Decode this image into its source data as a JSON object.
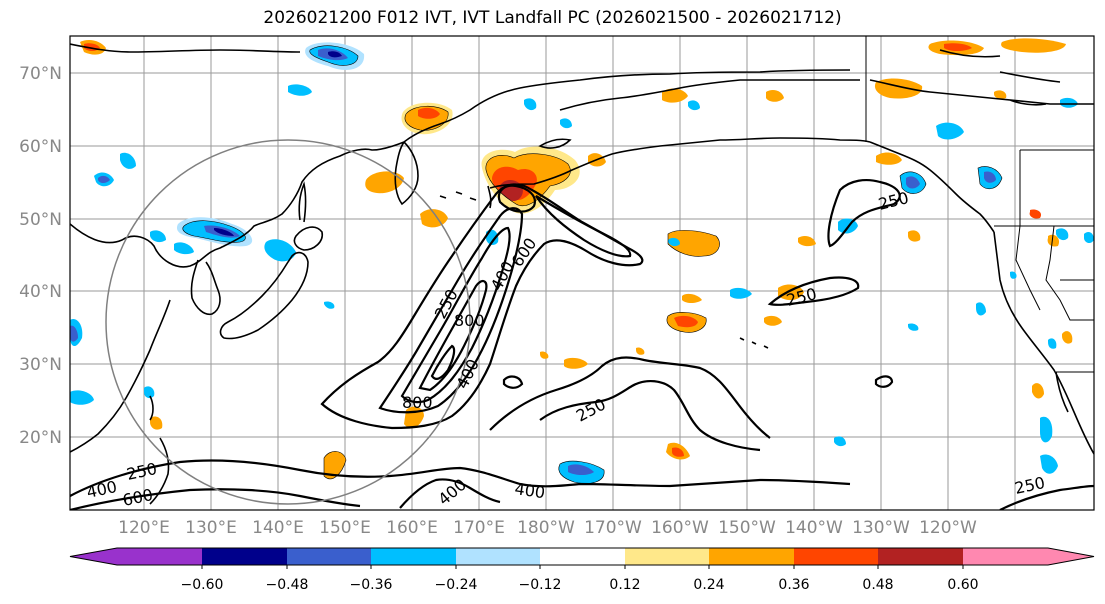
{
  "title": "2026021200 F012 IVT, IVT Landfall PC (2026021500 - 2026021712)",
  "map": {
    "lat_labels": [
      "70°N",
      "60°N",
      "50°N",
      "40°N",
      "30°N",
      "20°N"
    ],
    "lon_labels": [
      "120°E",
      "130°E",
      "140°E",
      "150°E",
      "160°E",
      "170°E",
      "180°W",
      "170°W",
      "160°W",
      "150°W",
      "140°W",
      "130°W",
      "120°W"
    ],
    "ivt_contour_labels": [
      "250",
      "250",
      "250",
      "250",
      "250",
      "250",
      "400",
      "400",
      "400",
      "400",
      "400",
      "600",
      "600",
      "800",
      "800"
    ]
  },
  "colorbar": {
    "tick_labels": [
      "−0.60",
      "−0.48",
      "−0.36",
      "−0.24",
      "−0.12",
      "0.12",
      "0.24",
      "0.36",
      "0.48",
      "0.60"
    ],
    "colors": [
      "#9932cc",
      "#00008b",
      "#3a5fcd",
      "#00bfff",
      "#b0e2ff",
      "#ffffff",
      "#ffe88a",
      "#ffa500",
      "#ff4500",
      "#b22222",
      "#ff88b0"
    ]
  },
  "colors": {
    "grid": "#9a9a9a",
    "axis_label": "#888888",
    "contour": "#000000",
    "circle": "#808080"
  }
}
